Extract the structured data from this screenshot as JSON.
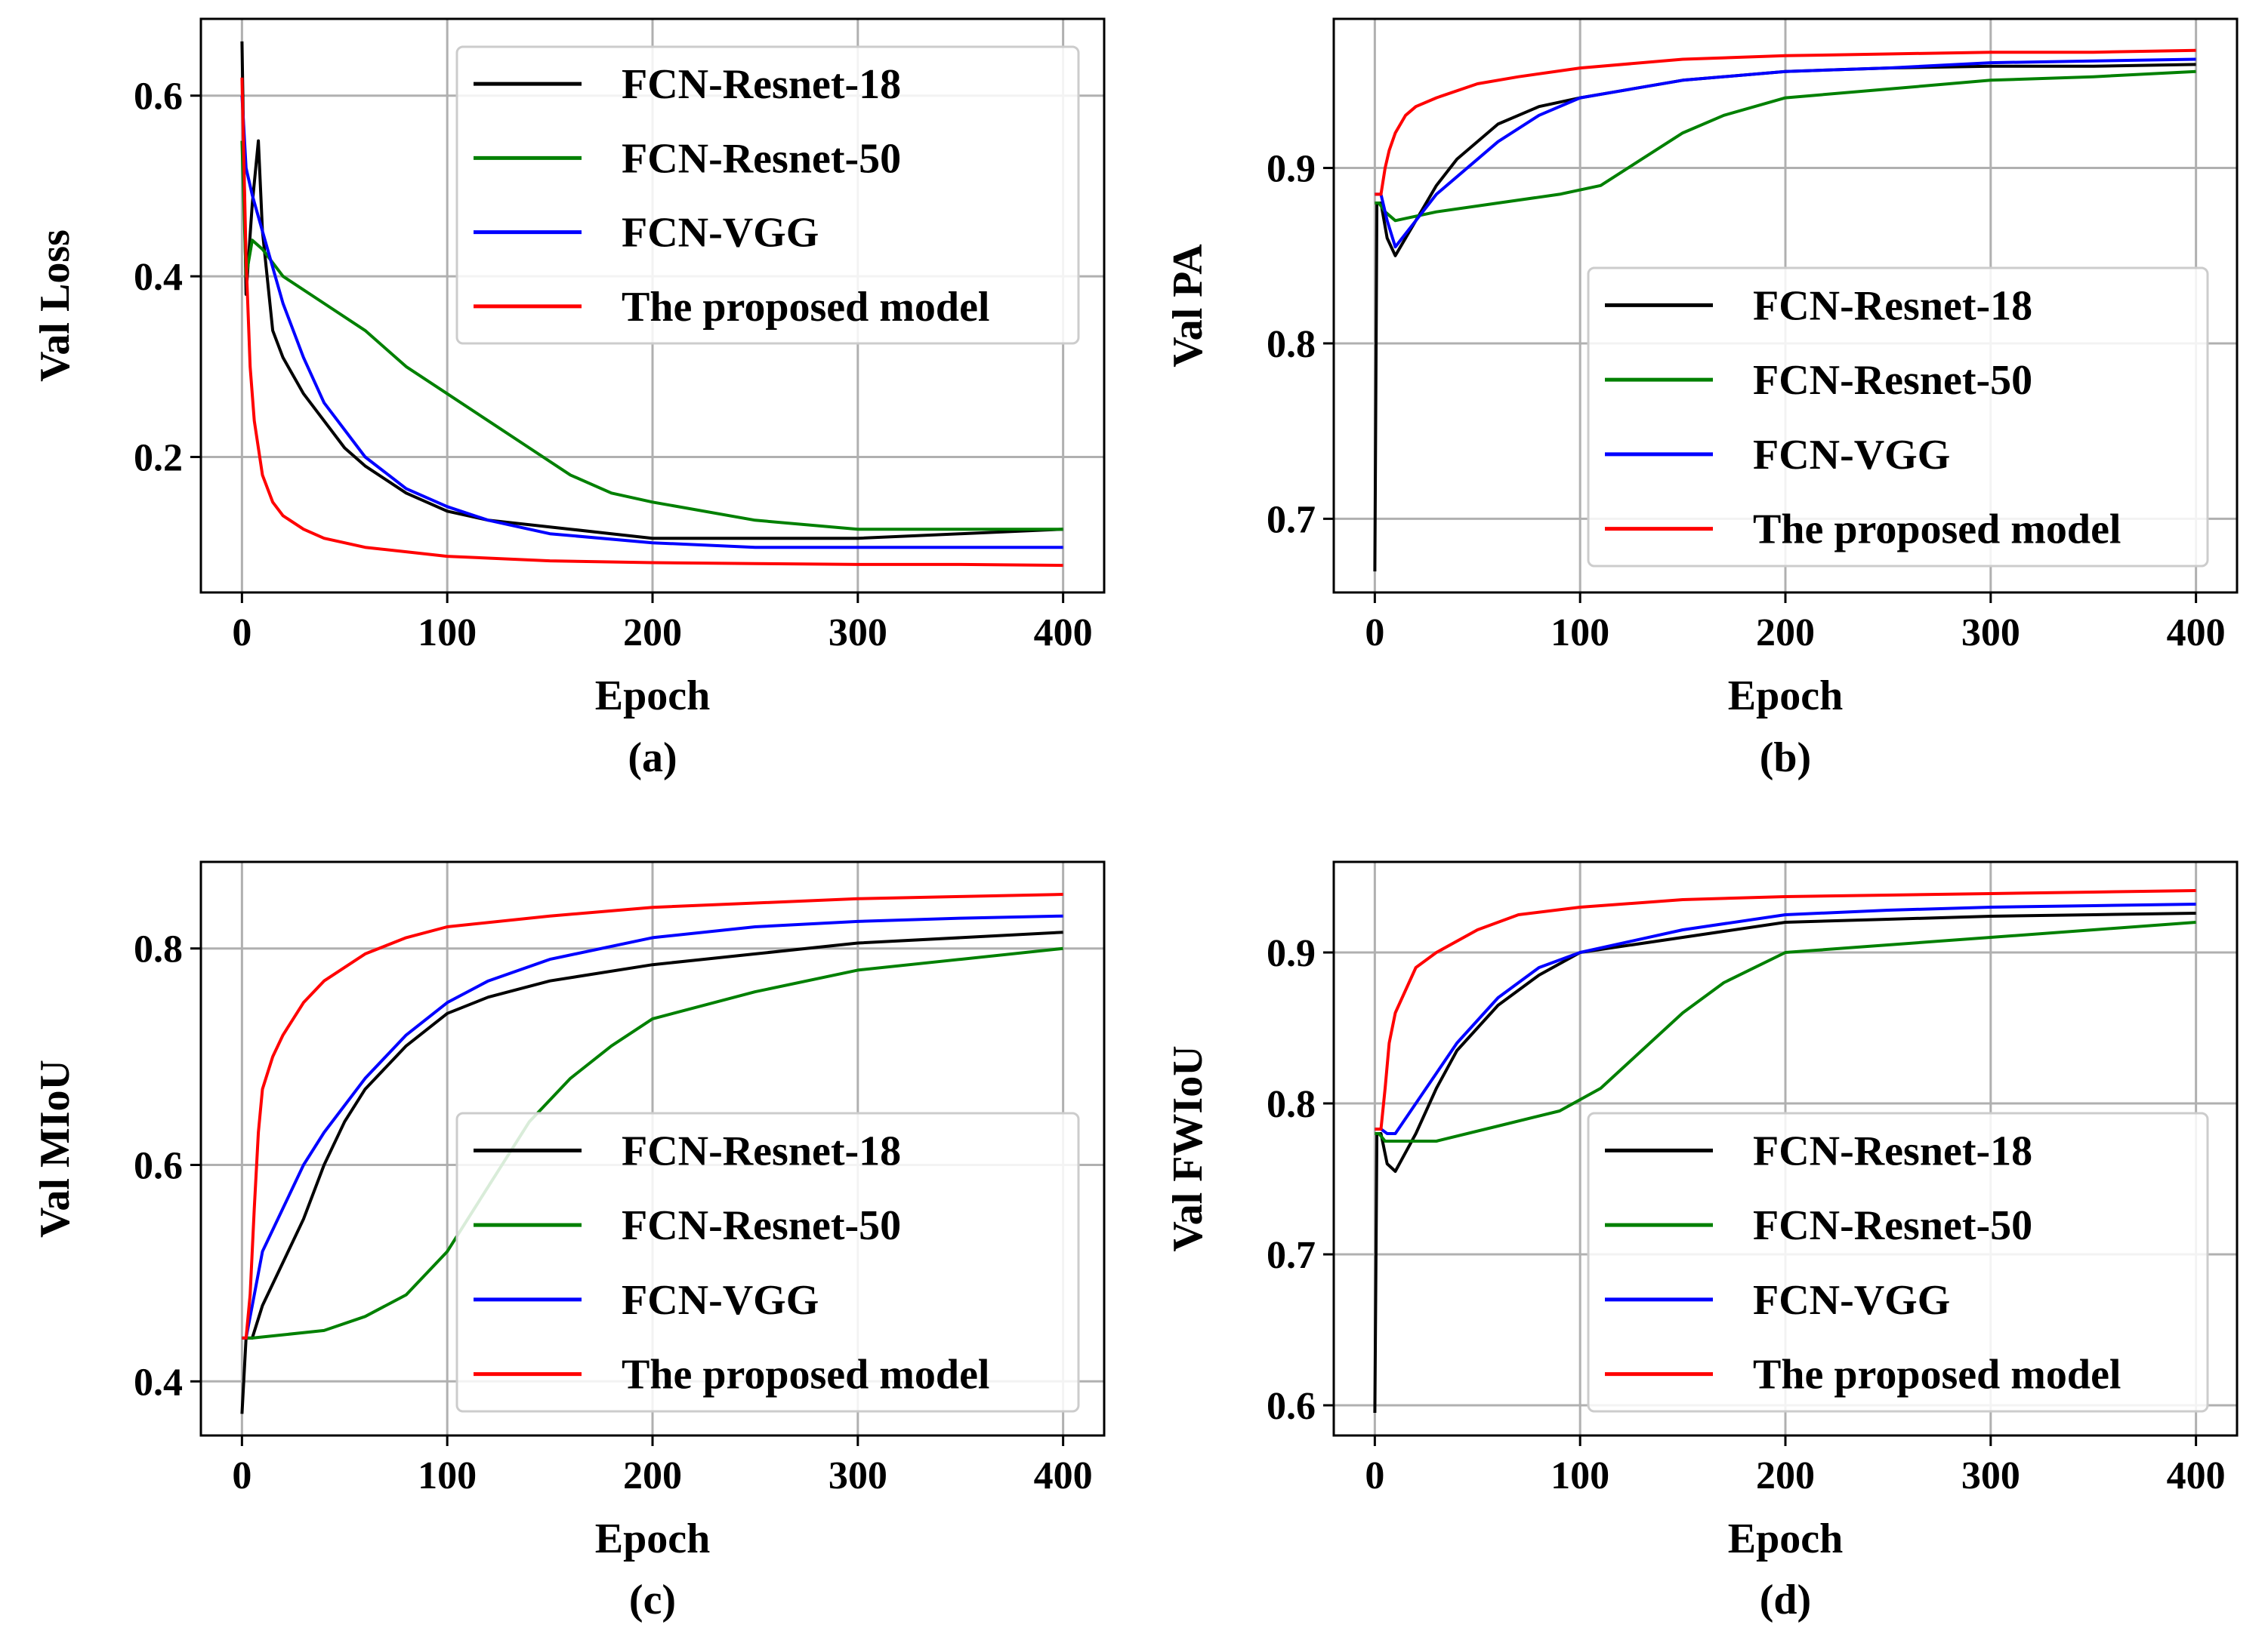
{
  "colors": {
    "FCN-Resnet-18": "#000000",
    "FCN-Resnet-50": "#008000",
    "FCN-VGG": "#0000ff",
    "The proposed model": "#ff0000"
  },
  "chart_data": [
    {
      "type": "line",
      "panel": "a",
      "caption": "(a)",
      "xlabel": "Epoch",
      "ylabel": "Val Loss",
      "xlim": [
        -20,
        420
      ],
      "ylim": [
        0.05,
        0.685
      ],
      "xticks": [
        0,
        100,
        200,
        300,
        400
      ],
      "yticks": [
        0.2,
        0.4,
        0.6
      ],
      "tick_labels_x": [
        "0",
        "100",
        "200",
        "300",
        "400"
      ],
      "tick_labels_y": [
        "0.2",
        "0.4",
        "0.6"
      ],
      "grid": true,
      "legend_position": "top-right",
      "series": [
        {
          "name": "FCN-Resnet-18",
          "x": [
            0,
            2,
            5,
            8,
            10,
            15,
            20,
            30,
            40,
            50,
            60,
            80,
            100,
            120,
            140,
            160,
            180,
            200,
            250,
            300,
            350,
            400
          ],
          "y": [
            0.66,
            0.38,
            0.48,
            0.55,
            0.45,
            0.34,
            0.31,
            0.27,
            0.24,
            0.21,
            0.19,
            0.16,
            0.14,
            0.13,
            0.125,
            0.12,
            0.115,
            0.11,
            0.11,
            0.11,
            0.115,
            0.12
          ]
        },
        {
          "name": "FCN-Resnet-50",
          "x": [
            0,
            2,
            5,
            10,
            20,
            40,
            60,
            80,
            100,
            120,
            140,
            160,
            180,
            200,
            250,
            300,
            350,
            400
          ],
          "y": [
            0.55,
            0.4,
            0.44,
            0.43,
            0.4,
            0.37,
            0.34,
            0.3,
            0.27,
            0.24,
            0.21,
            0.18,
            0.16,
            0.15,
            0.13,
            0.12,
            0.12,
            0.12
          ]
        },
        {
          "name": "FCN-VGG",
          "x": [
            0,
            2,
            5,
            10,
            20,
            30,
            40,
            60,
            80,
            100,
            120,
            150,
            200,
            250,
            300,
            350,
            400
          ],
          "y": [
            0.6,
            0.52,
            0.49,
            0.45,
            0.37,
            0.31,
            0.26,
            0.2,
            0.165,
            0.145,
            0.13,
            0.115,
            0.105,
            0.1,
            0.1,
            0.1,
            0.1
          ]
        },
        {
          "name": "The proposed model",
          "x": [
            0,
            2,
            4,
            6,
            8,
            10,
            15,
            20,
            30,
            40,
            60,
            80,
            100,
            150,
            200,
            250,
            300,
            350,
            400
          ],
          "y": [
            0.62,
            0.42,
            0.3,
            0.24,
            0.21,
            0.18,
            0.15,
            0.135,
            0.12,
            0.11,
            0.1,
            0.095,
            0.09,
            0.085,
            0.083,
            0.082,
            0.081,
            0.081,
            0.08
          ]
        }
      ]
    },
    {
      "type": "line",
      "panel": "b",
      "caption": "(b)",
      "xlabel": "Epoch",
      "ylabel": "Val PA",
      "xlim": [
        -20,
        420
      ],
      "ylim": [
        0.658,
        0.985
      ],
      "xticks": [
        0,
        100,
        200,
        300,
        400
      ],
      "yticks": [
        0.7,
        0.8,
        0.9
      ],
      "tick_labels_x": [
        "0",
        "100",
        "200",
        "300",
        "400"
      ],
      "tick_labels_y": [
        "0.7",
        "0.8",
        "0.9"
      ],
      "grid": true,
      "legend_position": "lower-right",
      "series": [
        {
          "name": "FCN-Resnet-18",
          "x": [
            0,
            1,
            3,
            6,
            10,
            20,
            30,
            40,
            60,
            80,
            100,
            150,
            200,
            250,
            300,
            350,
            400
          ],
          "y": [
            0.67,
            0.88,
            0.88,
            0.86,
            0.85,
            0.87,
            0.89,
            0.905,
            0.925,
            0.935,
            0.94,
            0.95,
            0.955,
            0.957,
            0.958,
            0.958,
            0.959
          ]
        },
        {
          "name": "FCN-Resnet-50",
          "x": [
            0,
            2,
            5,
            10,
            30,
            60,
            90,
            110,
            130,
            150,
            170,
            200,
            250,
            300,
            350,
            400
          ],
          "y": [
            0.88,
            0.88,
            0.875,
            0.87,
            0.875,
            0.88,
            0.885,
            0.89,
            0.905,
            0.92,
            0.93,
            0.94,
            0.945,
            0.95,
            0.952,
            0.955
          ]
        },
        {
          "name": "FCN-VGG",
          "x": [
            0,
            3,
            6,
            10,
            20,
            30,
            40,
            60,
            80,
            100,
            150,
            200,
            250,
            300,
            350,
            400
          ],
          "y": [
            0.885,
            0.885,
            0.87,
            0.855,
            0.87,
            0.885,
            0.895,
            0.915,
            0.93,
            0.94,
            0.95,
            0.955,
            0.957,
            0.96,
            0.961,
            0.962
          ]
        },
        {
          "name": "The proposed model",
          "x": [
            0,
            3,
            5,
            7,
            10,
            15,
            20,
            30,
            50,
            70,
            100,
            150,
            200,
            250,
            300,
            350,
            400
          ],
          "y": [
            0.885,
            0.885,
            0.9,
            0.91,
            0.92,
            0.93,
            0.935,
            0.94,
            0.948,
            0.952,
            0.957,
            0.962,
            0.964,
            0.965,
            0.966,
            0.966,
            0.967
          ]
        }
      ]
    },
    {
      "type": "line",
      "panel": "c",
      "caption": "(c)",
      "xlabel": "Epoch",
      "ylabel": "Val MIoU",
      "xlim": [
        -20,
        420
      ],
      "ylim": [
        0.35,
        0.88
      ],
      "xticks": [
        0,
        100,
        200,
        300,
        400
      ],
      "yticks": [
        0.4,
        0.6,
        0.8
      ],
      "tick_labels_x": [
        "0",
        "100",
        "200",
        "300",
        "400"
      ],
      "tick_labels_y": [
        "0.4",
        "0.6",
        "0.8"
      ],
      "grid": true,
      "legend_position": "lower-right",
      "series": [
        {
          "name": "FCN-Resnet-18",
          "x": [
            0,
            2,
            5,
            10,
            20,
            30,
            40,
            50,
            60,
            80,
            100,
            120,
            150,
            200,
            250,
            300,
            350,
            400
          ],
          "y": [
            0.37,
            0.44,
            0.44,
            0.47,
            0.51,
            0.55,
            0.6,
            0.64,
            0.67,
            0.71,
            0.74,
            0.755,
            0.77,
            0.785,
            0.795,
            0.805,
            0.81,
            0.815
          ]
        },
        {
          "name": "FCN-Resnet-50",
          "x": [
            0,
            5,
            20,
            40,
            60,
            80,
            100,
            120,
            140,
            160,
            180,
            200,
            250,
            300,
            350,
            400
          ],
          "y": [
            0.44,
            0.44,
            0.443,
            0.447,
            0.46,
            0.48,
            0.52,
            0.58,
            0.64,
            0.68,
            0.71,
            0.735,
            0.76,
            0.78,
            0.79,
            0.8
          ]
        },
        {
          "name": "FCN-VGG",
          "x": [
            0,
            2,
            5,
            10,
            20,
            30,
            40,
            60,
            80,
            100,
            120,
            150,
            200,
            250,
            300,
            350,
            400
          ],
          "y": [
            0.44,
            0.44,
            0.47,
            0.52,
            0.56,
            0.6,
            0.63,
            0.68,
            0.72,
            0.75,
            0.77,
            0.79,
            0.81,
            0.82,
            0.825,
            0.828,
            0.83
          ]
        },
        {
          "name": "The proposed model",
          "x": [
            0,
            2,
            4,
            6,
            8,
            10,
            15,
            20,
            30,
            40,
            60,
            80,
            100,
            150,
            200,
            250,
            300,
            350,
            400
          ],
          "y": [
            0.44,
            0.44,
            0.48,
            0.56,
            0.63,
            0.67,
            0.7,
            0.72,
            0.75,
            0.77,
            0.795,
            0.81,
            0.82,
            0.83,
            0.838,
            0.842,
            0.846,
            0.848,
            0.85
          ]
        }
      ]
    },
    {
      "type": "line",
      "panel": "d",
      "caption": "(d)",
      "xlabel": "Epoch",
      "ylabel": "Val FWIoU",
      "xlim": [
        -20,
        420
      ],
      "ylim": [
        0.58,
        0.96
      ],
      "xticks": [
        0,
        100,
        200,
        300,
        400
      ],
      "yticks": [
        0.6,
        0.7,
        0.8,
        0.9
      ],
      "tick_labels_x": [
        "0",
        "100",
        "200",
        "300",
        "400"
      ],
      "tick_labels_y": [
        "0.6",
        "0.7",
        "0.8",
        "0.9"
      ],
      "grid": true,
      "legend_position": "lower-right",
      "series": [
        {
          "name": "FCN-Resnet-18",
          "x": [
            0,
            1,
            3,
            6,
            10,
            20,
            30,
            40,
            60,
            80,
            100,
            150,
            200,
            250,
            300,
            350,
            400
          ],
          "y": [
            0.595,
            0.78,
            0.78,
            0.76,
            0.755,
            0.78,
            0.81,
            0.835,
            0.865,
            0.885,
            0.9,
            0.91,
            0.92,
            0.922,
            0.924,
            0.925,
            0.926
          ]
        },
        {
          "name": "FCN-Resnet-50",
          "x": [
            0,
            2,
            5,
            10,
            30,
            60,
            90,
            110,
            130,
            150,
            170,
            200,
            250,
            300,
            350,
            400
          ],
          "y": [
            0.78,
            0.78,
            0.775,
            0.775,
            0.775,
            0.785,
            0.795,
            0.81,
            0.835,
            0.86,
            0.88,
            0.9,
            0.905,
            0.91,
            0.915,
            0.92
          ]
        },
        {
          "name": "FCN-VGG",
          "x": [
            0,
            3,
            6,
            10,
            20,
            30,
            40,
            60,
            80,
            100,
            150,
            200,
            250,
            300,
            350,
            400
          ],
          "y": [
            0.783,
            0.783,
            0.78,
            0.78,
            0.8,
            0.82,
            0.84,
            0.87,
            0.89,
            0.9,
            0.915,
            0.925,
            0.928,
            0.93,
            0.931,
            0.932
          ]
        },
        {
          "name": "The proposed model",
          "x": [
            0,
            3,
            5,
            7,
            10,
            15,
            20,
            30,
            50,
            70,
            100,
            150,
            200,
            250,
            300,
            350,
            400
          ],
          "y": [
            0.783,
            0.783,
            0.81,
            0.84,
            0.86,
            0.875,
            0.89,
            0.9,
            0.915,
            0.925,
            0.93,
            0.935,
            0.937,
            0.938,
            0.939,
            0.94,
            0.941
          ]
        }
      ]
    }
  ]
}
